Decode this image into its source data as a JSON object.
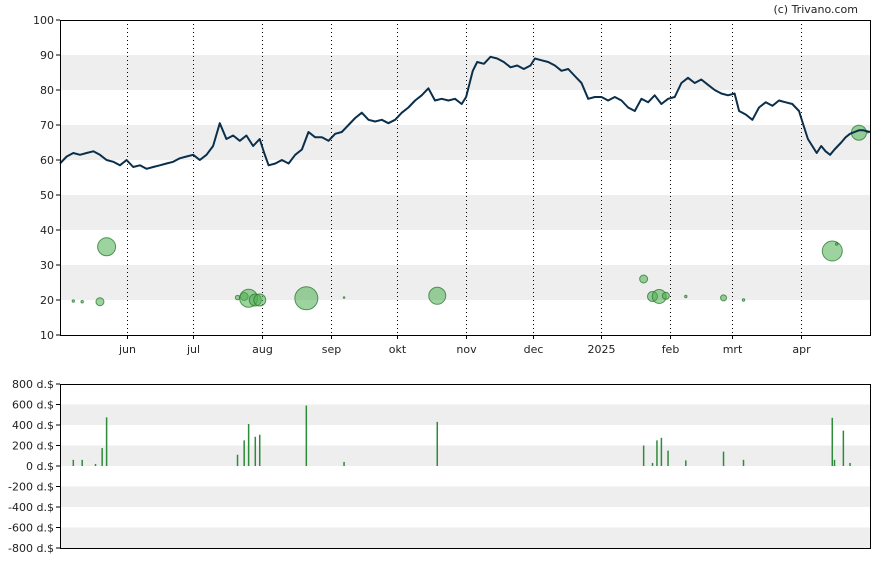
{
  "credit": "(c) Trivano.com",
  "colors": {
    "price_line": "#0b2f4a",
    "bubble_fill": "#4caf50",
    "bubble_stroke": "#2e7d32",
    "volume_bar": "#2e8b3a",
    "band": "#eeeeee",
    "frame": "#000000"
  },
  "chart_data": [
    {
      "type": "line",
      "title": "",
      "ylim": [
        10,
        100
      ],
      "yticks": [
        10,
        20,
        30,
        40,
        50,
        60,
        70,
        80,
        90,
        100
      ],
      "x_range": [
        0,
        365
      ],
      "month_ticks": [
        {
          "label": "jun",
          "x": 30
        },
        {
          "label": "jul",
          "x": 60
        },
        {
          "label": "aug",
          "x": 91
        },
        {
          "label": "sep",
          "x": 122
        },
        {
          "label": "okt",
          "x": 152
        },
        {
          "label": "nov",
          "x": 183
        },
        {
          "label": "dec",
          "x": 213
        },
        {
          "label": "2025",
          "x": 244
        },
        {
          "label": "feb",
          "x": 275
        },
        {
          "label": "mrt",
          "x": 303
        },
        {
          "label": "apr",
          "x": 334
        }
      ],
      "series": [
        {
          "points": [
            [
              0,
              59
            ],
            [
              3,
              61
            ],
            [
              6,
              62
            ],
            [
              9,
              61.5
            ],
            [
              12,
              62
            ],
            [
              15,
              62.5
            ],
            [
              18,
              61.5
            ],
            [
              21,
              60
            ],
            [
              24,
              59.5
            ],
            [
              27,
              58.5
            ],
            [
              30,
              60
            ],
            [
              33,
              58
            ],
            [
              36,
              58.5
            ],
            [
              39,
              57.5
            ],
            [
              42,
              58
            ],
            [
              45,
              58.5
            ],
            [
              48,
              59
            ],
            [
              51,
              59.5
            ],
            [
              54,
              60.5
            ],
            [
              57,
              61
            ],
            [
              60,
              61.5
            ],
            [
              63,
              60
            ],
            [
              66,
              61.5
            ],
            [
              69,
              64
            ],
            [
              72,
              70.5
            ],
            [
              75,
              66
            ],
            [
              78,
              67
            ],
            [
              81,
              65.5
            ],
            [
              84,
              67
            ],
            [
              87,
              64
            ],
            [
              90,
              66
            ],
            [
              92,
              62
            ],
            [
              94,
              58.5
            ],
            [
              97,
              59
            ],
            [
              100,
              60
            ],
            [
              103,
              59
            ],
            [
              106,
              61.5
            ],
            [
              109,
              63
            ],
            [
              112,
              68
            ],
            [
              115,
              66.5
            ],
            [
              118,
              66.5
            ],
            [
              121,
              65.5
            ],
            [
              124,
              67.5
            ],
            [
              127,
              68
            ],
            [
              130,
              70
            ],
            [
              133,
              72
            ],
            [
              136,
              73.5
            ],
            [
              139,
              71.5
            ],
            [
              142,
              71
            ],
            [
              145,
              71.5
            ],
            [
              148,
              70.5
            ],
            [
              151,
              71.5
            ],
            [
              154,
              73.5
            ],
            [
              157,
              75
            ],
            [
              160,
              77
            ],
            [
              163,
              78.5
            ],
            [
              166,
              80.5
            ],
            [
              169,
              77
            ],
            [
              172,
              77.5
            ],
            [
              175,
              77
            ],
            [
              178,
              77.5
            ],
            [
              181,
              76
            ],
            [
              183,
              78
            ],
            [
              186,
              85.5
            ],
            [
              188,
              88
            ],
            [
              191,
              87.5
            ],
            [
              194,
              89.5
            ],
            [
              197,
              89
            ],
            [
              200,
              88
            ],
            [
              203,
              86.5
            ],
            [
              206,
              87
            ],
            [
              209,
              86
            ],
            [
              212,
              87
            ],
            [
              214,
              89
            ],
            [
              217,
              88.5
            ],
            [
              220,
              88
            ],
            [
              223,
              87
            ],
            [
              226,
              85.5
            ],
            [
              229,
              86
            ],
            [
              232,
              84
            ],
            [
              235,
              82
            ],
            [
              238,
              77.5
            ],
            [
              241,
              78
            ],
            [
              244,
              78
            ],
            [
              247,
              77
            ],
            [
              250,
              78
            ],
            [
              253,
              77
            ],
            [
              256,
              75
            ],
            [
              259,
              74
            ],
            [
              262,
              77.5
            ],
            [
              265,
              76.5
            ],
            [
              268,
              78.5
            ],
            [
              271,
              76
            ],
            [
              274,
              77.5
            ],
            [
              277,
              78
            ],
            [
              280,
              82
            ],
            [
              283,
              83.5
            ],
            [
              286,
              82
            ],
            [
              289,
              83
            ],
            [
              292,
              81.5
            ],
            [
              295,
              80
            ],
            [
              298,
              79
            ],
            [
              301,
              78.5
            ],
            [
              304,
              79
            ],
            [
              306,
              74
            ],
            [
              309,
              73
            ],
            [
              312,
              71.5
            ],
            [
              315,
              75
            ],
            [
              318,
              76.5
            ],
            [
              321,
              75.5
            ],
            [
              324,
              77
            ],
            [
              327,
              76.5
            ],
            [
              330,
              76
            ],
            [
              333,
              74
            ],
            [
              335,
              70
            ],
            [
              337,
              66
            ],
            [
              339,
              64
            ],
            [
              341,
              62
            ],
            [
              343,
              64
            ],
            [
              345,
              62.5
            ],
            [
              347,
              61.5
            ],
            [
              349,
              63
            ],
            [
              352,
              65
            ],
            [
              354,
              66.5
            ],
            [
              356,
              67.5
            ],
            [
              358,
              68
            ],
            [
              360,
              68.5
            ],
            [
              362,
              68.5
            ],
            [
              365,
              68
            ]
          ]
        }
      ],
      "bubbles": [
        {
          "x": 6,
          "y": 19.7,
          "r": 1.2
        },
        {
          "x": 10,
          "y": 19.5,
          "r": 1.2
        },
        {
          "x": 18,
          "y": 19.5,
          "r": 4
        },
        {
          "x": 21,
          "y": 35.2,
          "r": 9
        },
        {
          "x": 80,
          "y": 20.7,
          "r": 2.2
        },
        {
          "x": 83,
          "y": 21,
          "r": 4
        },
        {
          "x": 85,
          "y": 20.5,
          "r": 9
        },
        {
          "x": 88,
          "y": 20,
          "r": 6
        },
        {
          "x": 90,
          "y": 20,
          "r": 6
        },
        {
          "x": 111,
          "y": 20.5,
          "r": 11.5
        },
        {
          "x": 128,
          "y": 20.7,
          "r": 0.8
        },
        {
          "x": 170,
          "y": 21.2,
          "r": 8.5
        },
        {
          "x": 263,
          "y": 26,
          "r": 4
        },
        {
          "x": 267,
          "y": 21,
          "r": 5
        },
        {
          "x": 270,
          "y": 21,
          "r": 7
        },
        {
          "x": 273,
          "y": 21.2,
          "r": 3.5
        },
        {
          "x": 282,
          "y": 21,
          "r": 1.2
        },
        {
          "x": 299,
          "y": 20.6,
          "r": 3
        },
        {
          "x": 308,
          "y": 20,
          "r": 1.2
        },
        {
          "x": 348,
          "y": 34,
          "r": 10
        },
        {
          "x": 350,
          "y": 36,
          "r": 1.2
        },
        {
          "x": 360,
          "y": 67.8,
          "r": 7.5
        },
        {
          "x": 364,
          "y": 68,
          "r": 1
        }
      ]
    },
    {
      "type": "bar",
      "title": "",
      "ylim": [
        -800,
        800
      ],
      "yticks": [
        {
          "value": 800,
          "label": "800 d.$"
        },
        {
          "value": 600,
          "label": "600 d.$"
        },
        {
          "value": 400,
          "label": "400 d.$"
        },
        {
          "value": 200,
          "label": "200 d.$"
        },
        {
          "value": 0,
          "label": "0 d.$"
        },
        {
          "value": -200,
          "label": "-200 d.$"
        },
        {
          "value": -400,
          "label": "-400 d.$"
        },
        {
          "value": -600,
          "label": "-600 d.$"
        },
        {
          "value": -800,
          "label": "-800 d.$"
        }
      ],
      "x_range": [
        0,
        365
      ],
      "values": [
        {
          "x": 6,
          "value": 60
        },
        {
          "x": 10,
          "value": 60
        },
        {
          "x": 16,
          "value": 20
        },
        {
          "x": 19,
          "value": 175
        },
        {
          "x": 21,
          "value": 475
        },
        {
          "x": 80,
          "value": 110
        },
        {
          "x": 83,
          "value": 250
        },
        {
          "x": 85,
          "value": 410
        },
        {
          "x": 88,
          "value": 285
        },
        {
          "x": 90,
          "value": 305
        },
        {
          "x": 111,
          "value": 590
        },
        {
          "x": 128,
          "value": 40
        },
        {
          "x": 170,
          "value": 430
        },
        {
          "x": 263,
          "value": 200
        },
        {
          "x": 267,
          "value": 30
        },
        {
          "x": 269,
          "value": 250
        },
        {
          "x": 271,
          "value": 275
        },
        {
          "x": 274,
          "value": 150
        },
        {
          "x": 282,
          "value": 55
        },
        {
          "x": 299,
          "value": 140
        },
        {
          "x": 308,
          "value": 60
        },
        {
          "x": 348,
          "value": 470
        },
        {
          "x": 349,
          "value": 60
        },
        {
          "x": 353,
          "value": 345
        },
        {
          "x": 356,
          "value": 30
        }
      ]
    }
  ]
}
